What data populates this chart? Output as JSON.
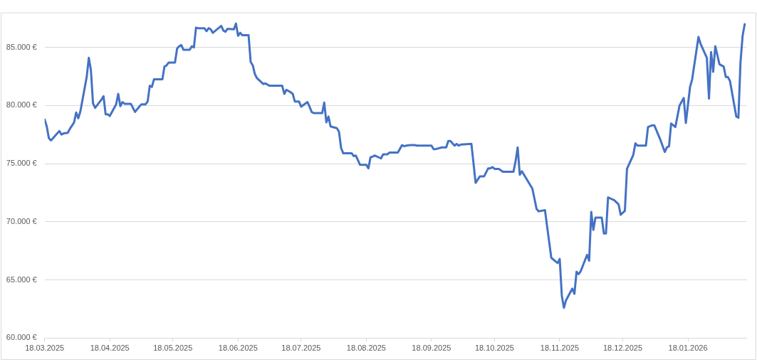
{
  "chart_data": {
    "type": "line",
    "x": [
      "2025-03-18",
      "2025-03-19",
      "2025-03-20",
      "2025-03-21",
      "2025-03-24",
      "2025-03-25",
      "2025-03-26",
      "2025-03-27",
      "2025-03-29",
      "2025-03-30",
      "2025-04-01",
      "2025-04-02",
      "2025-04-03",
      "2025-04-04",
      "2025-04-07",
      "2025-04-08",
      "2025-04-09",
      "2025-04-10",
      "2025-04-11",
      "2025-04-14",
      "2025-04-15",
      "2025-04-16",
      "2025-04-17",
      "2025-04-18",
      "2025-04-21",
      "2025-04-22",
      "2025-04-23",
      "2025-04-24",
      "2025-04-25",
      "2025-04-28",
      "2025-04-30",
      "2025-05-02",
      "2025-05-03",
      "2025-05-05",
      "2025-05-06",
      "2025-05-07",
      "2025-05-08",
      "2025-05-09",
      "2025-05-13",
      "2025-05-14",
      "2025-05-15",
      "2025-05-16",
      "2025-05-19",
      "2025-05-20",
      "2025-05-21",
      "2025-05-22",
      "2025-05-23",
      "2025-05-26",
      "2025-05-27",
      "2025-05-28",
      "2025-05-29",
      "2025-05-30",
      "2025-06-02",
      "2025-06-03",
      "2025-06-04",
      "2025-06-05",
      "2025-06-06",
      "2025-06-10",
      "2025-06-11",
      "2025-06-12",
      "2025-06-13",
      "2025-06-16",
      "2025-06-17",
      "2025-06-18",
      "2025-06-19",
      "2025-06-20",
      "2025-06-23",
      "2025-06-24",
      "2025-06-25",
      "2025-06-26",
      "2025-06-27",
      "2025-06-30",
      "2025-07-01",
      "2025-07-02",
      "2025-07-03",
      "2025-07-09",
      "2025-07-10",
      "2025-07-11",
      "2025-07-13",
      "2025-07-14",
      "2025-07-15",
      "2025-07-17",
      "2025-07-18",
      "2025-07-21",
      "2025-07-22",
      "2025-07-23",
      "2025-07-24",
      "2025-07-28",
      "2025-07-29",
      "2025-07-30",
      "2025-07-31",
      "2025-08-01",
      "2025-08-04",
      "2025-08-05",
      "2025-08-06",
      "2025-08-07",
      "2025-08-11",
      "2025-08-12",
      "2025-08-13",
      "2025-08-15",
      "2025-08-18",
      "2025-08-19",
      "2025-08-20",
      "2025-08-21",
      "2025-08-22",
      "2025-08-25",
      "2025-08-26",
      "2025-08-28",
      "2025-08-29",
      "2025-09-02",
      "2025-09-04",
      "2025-09-05",
      "2025-09-06",
      "2025-09-08",
      "2025-09-10",
      "2025-09-11",
      "2025-09-18",
      "2025-09-19",
      "2025-09-20",
      "2025-09-23",
      "2025-09-25",
      "2025-09-26",
      "2025-09-27",
      "2025-09-29",
      "2025-09-30",
      "2025-10-01",
      "2025-10-02",
      "2025-10-07",
      "2025-10-09",
      "2025-10-11",
      "2025-10-13",
      "2025-10-15",
      "2025-10-16",
      "2025-10-17",
      "2025-10-18",
      "2025-10-20",
      "2025-10-22",
      "2025-10-27",
      "2025-10-28",
      "2025-10-29",
      "2025-10-30",
      "2025-10-31",
      "2025-11-05",
      "2025-11-07",
      "2025-11-08",
      "2025-11-11",
      "2025-11-12",
      "2025-11-14",
      "2025-11-17",
      "2025-11-18",
      "2025-11-19",
      "2025-11-20",
      "2025-11-21",
      "2025-11-24",
      "2025-11-25",
      "2025-11-26",
      "2025-11-27",
      "2025-11-28",
      "2025-12-01",
      "2025-12-02",
      "2025-12-03",
      "2025-12-04",
      "2025-12-05",
      "2025-12-08",
      "2025-12-09",
      "2025-12-10",
      "2025-12-11",
      "2025-12-14",
      "2025-12-16",
      "2025-12-17",
      "2025-12-19",
      "2025-12-20",
      "2025-12-23",
      "2025-12-24",
      "2025-12-25",
      "2025-12-29",
      "2025-12-30",
      "2026-01-01",
      "2026-01-02",
      "2026-01-05",
      "2026-01-07",
      "2026-01-08",
      "2026-01-09",
      "2026-01-10",
      "2026-01-12",
      "2026-01-14",
      "2026-01-16",
      "2026-01-17",
      "2026-01-19",
      "2026-01-20",
      "2026-01-23",
      "2026-01-24",
      "2026-01-27",
      "2026-01-28",
      "2026-01-29",
      "2026-01-30",
      "2026-01-31",
      "2026-02-02",
      "2026-02-04",
      "2026-02-05",
      "2026-02-06",
      "2026-02-07",
      "2026-02-10",
      "2026-02-11",
      "2026-02-12",
      "2026-02-13",
      "2026-02-14"
    ],
    "series": [
      {
        "color": "#4472c4",
        "values": [
          78800,
          78200,
          77200,
          77000,
          77600,
          77800,
          77500,
          77600,
          77650,
          78000,
          78550,
          79400,
          78900,
          79500,
          82450,
          84100,
          83050,
          80200,
          79800,
          80500,
          80800,
          79250,
          79250,
          79100,
          80100,
          81000,
          79950,
          80300,
          80150,
          80150,
          79450,
          79900,
          80100,
          80100,
          80350,
          81700,
          81600,
          82250,
          82250,
          83350,
          83450,
          83700,
          83700,
          84900,
          85100,
          85200,
          84800,
          84800,
          85100,
          85000,
          86700,
          86650,
          86650,
          86400,
          86650,
          86550,
          86250,
          86850,
          86450,
          86350,
          86600,
          86550,
          87050,
          86000,
          86250,
          86050,
          86050,
          83750,
          83450,
          82700,
          82350,
          81850,
          81900,
          81800,
          81700,
          81700,
          81000,
          81350,
          81150,
          81000,
          80350,
          80350,
          79900,
          80300,
          79900,
          79450,
          79350,
          79350,
          80250,
          78550,
          79050,
          78200,
          78050,
          77750,
          76350,
          75900,
          75900,
          75650,
          75700,
          74900,
          74900,
          74600,
          75550,
          75600,
          75700,
          75450,
          75800,
          75800,
          75950,
          75950,
          76600,
          76500,
          76550,
          76600,
          76600,
          76550,
          76550,
          76250,
          76250,
          76400,
          76400,
          76950,
          76950,
          76550,
          76700,
          76550,
          76650,
          76700,
          73350,
          73900,
          73900,
          74600,
          74600,
          74700,
          74550,
          74550,
          74300,
          74300,
          75200,
          76400,
          74050,
          74350,
          72850,
          71100,
          70900,
          71000,
          69600,
          66900,
          66450,
          66800,
          63650,
          62600,
          63250,
          64250,
          63800,
          65700,
          65500,
          65750,
          67150,
          66650,
          70850,
          69300,
          70350,
          70350,
          69000,
          69000,
          72100,
          71850,
          71500,
          70600,
          70950,
          74550,
          75750,
          76750,
          76550,
          76550,
          78150,
          78300,
          78300,
          77000,
          76000,
          76400,
          76500,
          78450,
          78150,
          80000,
          80650,
          78500,
          81600,
          82250,
          85900,
          85300,
          84100,
          80600,
          84600,
          82900,
          85100,
          83550,
          83350,
          82450,
          82450,
          82100,
          79050,
          78950,
          83750,
          86000,
          87000
        ]
      }
    ],
    "xlim": [
      "2025-03-18",
      "2026-02-15"
    ],
    "xticks": [
      {
        "value": "2025-03-18",
        "label": "18.03.2025"
      },
      {
        "value": "2025-04-18",
        "label": "18.04.2025"
      },
      {
        "value": "2025-05-18",
        "label": "18.05.2025"
      },
      {
        "value": "2025-06-18",
        "label": "18.06.2025"
      },
      {
        "value": "2025-07-18",
        "label": "18.07.2025"
      },
      {
        "value": "2025-08-18",
        "label": "18.08.2025"
      },
      {
        "value": "2025-09-18",
        "label": "18.09.2025"
      },
      {
        "value": "2025-10-18",
        "label": "18.10.2025"
      },
      {
        "value": "2025-11-18",
        "label": "18.11.2025"
      },
      {
        "value": "2025-12-18",
        "label": "18.12.2025"
      },
      {
        "value": "2026-01-18",
        "label": "18.01.2026"
      }
    ],
    "ylim": [
      60000,
      88000
    ],
    "yticks": [
      {
        "value": 60000,
        "label": "60.000 €"
      },
      {
        "value": 65000,
        "label": "65.000 €"
      },
      {
        "value": 70000,
        "label": "70.000 €"
      },
      {
        "value": 75000,
        "label": "75.000 €"
      },
      {
        "value": 80000,
        "label": "80.000 €"
      },
      {
        "value": 85000,
        "label": "85.000 €"
      }
    ],
    "grid": "y",
    "marker": "none",
    "line_style": "solid"
  }
}
